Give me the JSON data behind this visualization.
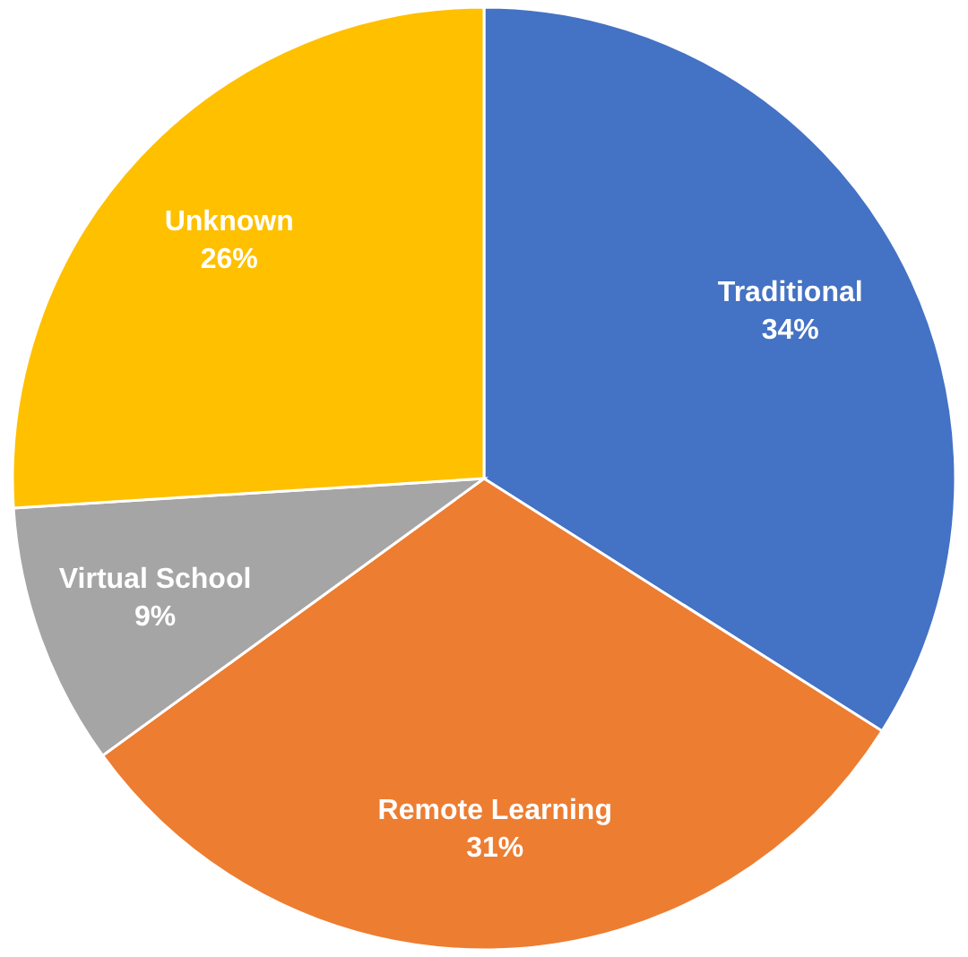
{
  "chart_data": {
    "type": "pie",
    "categories": [
      "Traditional",
      "Remote Learning",
      "Virtual School",
      "Unknown"
    ],
    "values": [
      34,
      31,
      9,
      26
    ],
    "value_labels": [
      "34%",
      "31%",
      "9%",
      "26%"
    ],
    "colors": [
      "#4472c4",
      "#ed7d31",
      "#a5a5a5",
      "#ffc000"
    ]
  }
}
